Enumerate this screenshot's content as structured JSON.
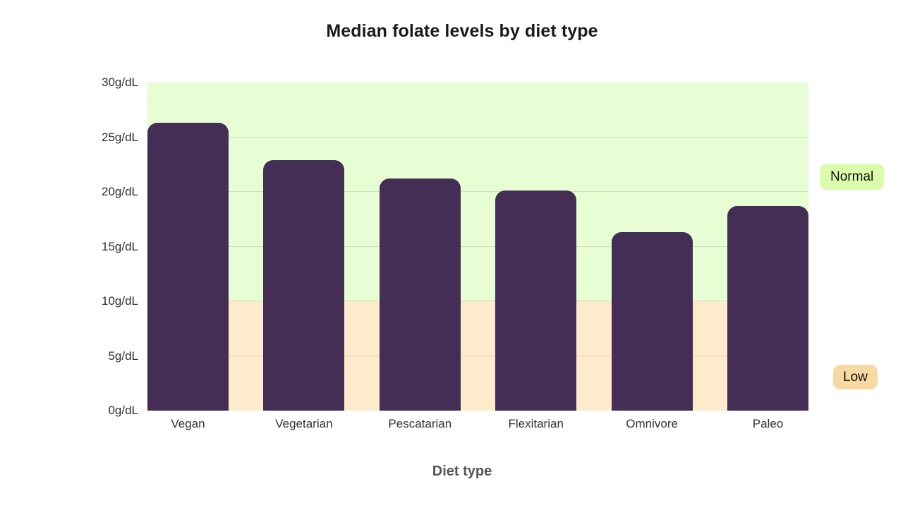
{
  "chart_data": {
    "type": "bar",
    "title": "Median folate levels by diet type",
    "xlabel": "Diet type",
    "ylabel": "",
    "categories": [
      "Vegan",
      "Vegetarian",
      "Pescatarian",
      "Flexitarian",
      "Omnivore",
      "Paleo"
    ],
    "values": [
      26.3,
      22.9,
      21.2,
      20.1,
      16.3,
      18.7
    ],
    "ylim": [
      0,
      30
    ],
    "ytick_step": 5,
    "ytick_suffix": "g/dL",
    "grid": true,
    "legend_position": "right",
    "bar_color": "#452e55",
    "bands": [
      {
        "label": "Normal",
        "from": 10,
        "to": 30,
        "fill": "#e7fdd3",
        "badge_fill": "#dbfcab"
      },
      {
        "label": "Low",
        "from": 0,
        "to": 10,
        "fill": "#fdebcc",
        "badge_fill": "#f8d9a2"
      }
    ]
  },
  "colors": {
    "background": "#ffffff",
    "title_text": "#1a1a1a",
    "tick_text": "#333333",
    "axis_title_text": "#555555",
    "gridline": "rgba(80,90,60,0.18)"
  }
}
